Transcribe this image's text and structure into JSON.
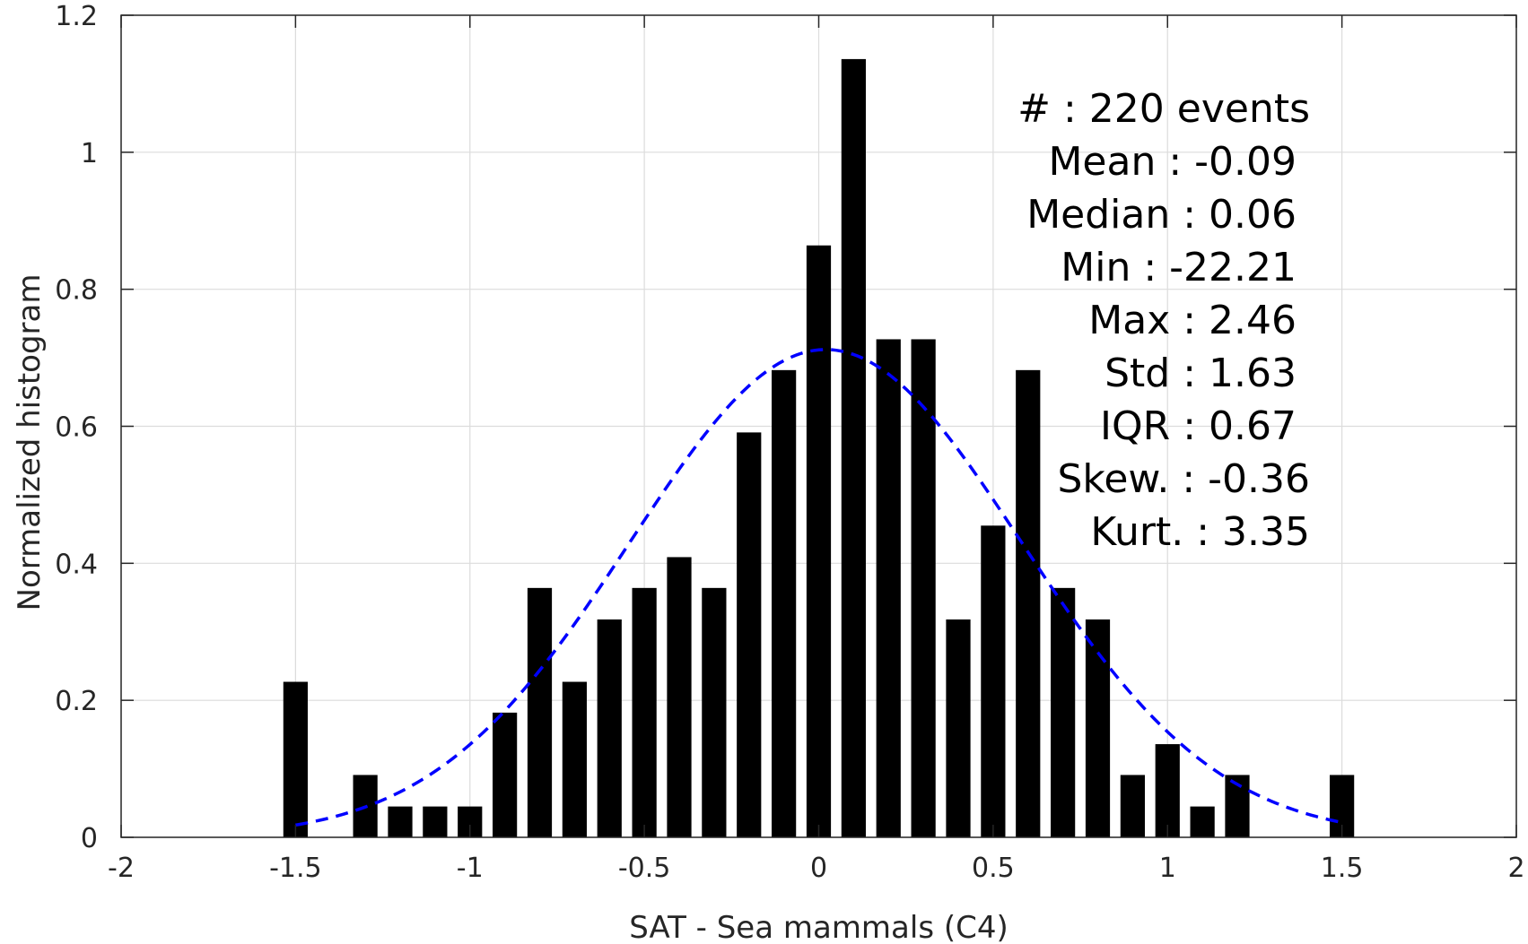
{
  "chart_data": {
    "type": "bar",
    "xlabel": "SAT - Sea mammals (C4)",
    "ylabel": "Normalized histogram",
    "xlim": [
      -2,
      2
    ],
    "ylim": [
      0,
      1.2
    ],
    "xticks": [
      "-2",
      "-1.5",
      "-1",
      "-0.5",
      "0",
      "0.5",
      "1",
      "1.5",
      "2"
    ],
    "yticks": [
      "0",
      "0.2",
      "0.4",
      "0.6",
      "0.8",
      "1",
      "1.2"
    ],
    "grid": true,
    "bar_width": 0.07,
    "bins": [
      {
        "x": -1.5,
        "value": 0.227
      },
      {
        "x": -1.3,
        "value": 0.091
      },
      {
        "x": -1.2,
        "value": 0.045
      },
      {
        "x": -1.1,
        "value": 0.045
      },
      {
        "x": -1.0,
        "value": 0.045
      },
      {
        "x": -0.9,
        "value": 0.182
      },
      {
        "x": -0.8,
        "value": 0.364
      },
      {
        "x": -0.7,
        "value": 0.227
      },
      {
        "x": -0.6,
        "value": 0.318
      },
      {
        "x": -0.5,
        "value": 0.364
      },
      {
        "x": -0.4,
        "value": 0.409
      },
      {
        "x": -0.3,
        "value": 0.364
      },
      {
        "x": -0.2,
        "value": 0.591
      },
      {
        "x": -0.1,
        "value": 0.682
      },
      {
        "x": 0.0,
        "value": 0.864
      },
      {
        "x": 0.1,
        "value": 1.136
      },
      {
        "x": 0.2,
        "value": 0.727
      },
      {
        "x": 0.3,
        "value": 0.727
      },
      {
        "x": 0.4,
        "value": 0.318
      },
      {
        "x": 0.5,
        "value": 0.455
      },
      {
        "x": 0.6,
        "value": 0.682
      },
      {
        "x": 0.7,
        "value": 0.364
      },
      {
        "x": 0.8,
        "value": 0.318
      },
      {
        "x": 0.9,
        "value": 0.091
      },
      {
        "x": 1.0,
        "value": 0.136
      },
      {
        "x": 1.1,
        "value": 0.045
      },
      {
        "x": 1.2,
        "value": 0.091
      },
      {
        "x": 1.5,
        "value": 0.091
      }
    ],
    "fit_curve": {
      "style": "dashed",
      "color": "#0000ff",
      "mean": 0.02,
      "sigma": 0.56,
      "peak": 0.712,
      "x_range": [
        -1.5,
        1.5
      ]
    },
    "bar_color": "#000000",
    "stats": [
      "#  : 220 events",
      "Mean : -0.09",
      "Median : 0.06",
      "Min : -22.21",
      "Max : 2.46",
      "Std : 1.63",
      "IQR : 0.67",
      "Skew. : -0.36",
      "Kurt. : 3.35"
    ]
  }
}
